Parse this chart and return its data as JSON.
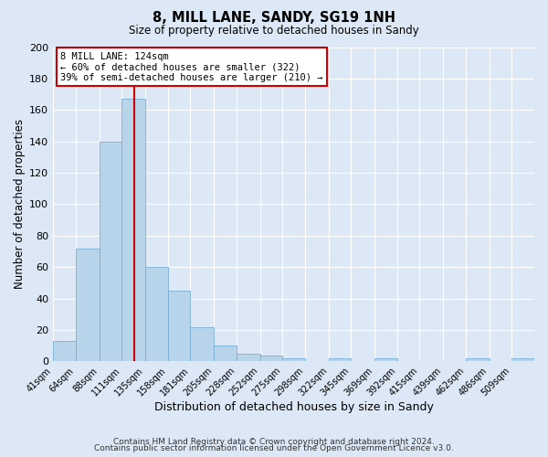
{
  "title": "8, MILL LANE, SANDY, SG19 1NH",
  "subtitle": "Size of property relative to detached houses in Sandy",
  "xlabel": "Distribution of detached houses by size in Sandy",
  "ylabel": "Number of detached properties",
  "bin_labels": [
    "41sqm",
    "64sqm",
    "88sqm",
    "111sqm",
    "135sqm",
    "158sqm",
    "181sqm",
    "205sqm",
    "228sqm",
    "252sqm",
    "275sqm",
    "298sqm",
    "322sqm",
    "345sqm",
    "369sqm",
    "392sqm",
    "415sqm",
    "439sqm",
    "462sqm",
    "486sqm",
    "509sqm"
  ],
  "bar_values": [
    13,
    72,
    140,
    167,
    60,
    45,
    22,
    10,
    5,
    4,
    2,
    0,
    2,
    0,
    2,
    0,
    0,
    0,
    2,
    0,
    2
  ],
  "bar_color": "#b8d4ea",
  "bar_edge_color": "#7aafd4",
  "ylim": [
    0,
    200
  ],
  "yticks": [
    0,
    20,
    40,
    60,
    80,
    100,
    120,
    140,
    160,
    180,
    200
  ],
  "vline_x": 124,
  "vline_color": "#cc0000",
  "annotation_line1": "8 MILL LANE: 124sqm",
  "annotation_line2": "← 60% of detached houses are smaller (322)",
  "annotation_line3": "39% of semi-detached houses are larger (210) →",
  "annotation_box_edge": "#cc0000",
  "footer_line1": "Contains HM Land Registry data © Crown copyright and database right 2024.",
  "footer_line2": "Contains public sector information licensed under the Open Government Licence v3.0.",
  "background_color": "#dce8f5",
  "plot_background": "#dce8f5",
  "bin_edges": [
    41,
    64,
    88,
    111,
    135,
    158,
    181,
    205,
    228,
    252,
    275,
    298,
    322,
    345,
    369,
    392,
    415,
    439,
    462,
    486,
    509,
    532
  ]
}
